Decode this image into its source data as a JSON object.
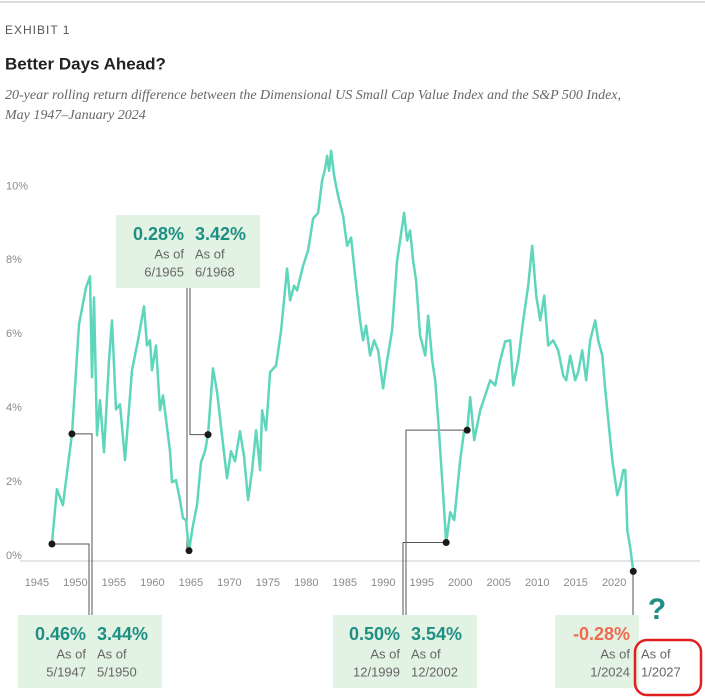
{
  "chart_data": {
    "type": "line",
    "kicker": "EXHIBIT 1",
    "title": "Better Days Ahead?",
    "subtitle": [
      "20-year rolling return difference between the Dimensional US Small Cap Value Index and the S&P 500 Index,",
      "May 1947–January 2024"
    ],
    "color": "#5ed6bb",
    "xlim": [
      1942.8,
      2031.8
    ],
    "ylim": [
      -1,
      11.2
    ],
    "xticks": [
      1945,
      1950,
      1955,
      1960,
      1965,
      1970,
      1975,
      1980,
      1985,
      1990,
      1995,
      2000,
      2005,
      2010,
      2015,
      2020
    ],
    "yticks": [
      {
        "value": 0,
        "label": "0%"
      },
      {
        "value": 2,
        "label": "2%"
      },
      {
        "value": 4,
        "label": "4%"
      },
      {
        "value": 6,
        "label": "6%"
      },
      {
        "value": 8,
        "label": "8%"
      },
      {
        "value": 10,
        "label": "10%"
      }
    ],
    "grid": false,
    "x": [
      1946.95,
      1947.6,
      1948.38,
      1949.55,
      1950.46,
      1951.37,
      1951.89,
      1952.15,
      1952.41,
      1952.8,
      1953.19,
      1953.71,
      1954.36,
      1954.75,
      1955.27,
      1955.79,
      1956.44,
      1957.35,
      1958.13,
      1958.91,
      1959.3,
      1959.69,
      1959.95,
      1960.47,
      1960.99,
      1961.38,
      1962.29,
      1962.55,
      1963.07,
      1963.59,
      1963.98,
      1964.37,
      1964.76,
      1965.28,
      1965.8,
      1966.32,
      1966.84,
      1967.23,
      1967.88,
      1968.4,
      1969.05,
      1969.7,
      1970.22,
      1970.74,
      1971.39,
      1971.91,
      1972.43,
      1972.95,
      1973.47,
      1973.99,
      1974.25,
      1974.77,
      1975.29,
      1976.07,
      1976.72,
      1977.5,
      1977.89,
      1978.41,
      1978.8,
      1979.58,
      1980.23,
      1980.88,
      1981.53,
      1982.05,
      1982.44,
      1982.7,
      1982.96,
      1983.22,
      1983.61,
      1984.13,
      1984.78,
      1985.3,
      1985.82,
      1986.34,
      1986.99,
      1987.38,
      1987.77,
      1988.29,
      1988.81,
      1989.33,
      1989.98,
      1990.5,
      1991.15,
      1991.8,
      1992.19,
      1992.71,
      1993.1,
      1993.49,
      1993.88,
      1994.27,
      1994.79,
      1995.44,
      1995.83,
      1996.35,
      1996.74,
      1997.13,
      1997.65,
      1998.17,
      1998.69,
      1999.21,
      1999.6,
      1999.99,
      2000.51,
      2000.9,
      2001.29,
      2001.81,
      2002.59,
      2003.24,
      2003.89,
      2004.54,
      2005.19,
      2005.84,
      2006.49,
      2006.88,
      2007.53,
      2008.18,
      2008.83,
      2009.35,
      2009.87,
      2010.39,
      2010.91,
      2011.43,
      2012.08,
      2012.73,
      2013.38,
      2013.77,
      2014.29,
      2014.94,
      2015.33,
      2015.85,
      2016.37,
      2016.89,
      2017.54,
      2017.93,
      2018.45,
      2018.84,
      2019.23,
      2019.75,
      2020.4,
      2020.79,
      2021.18,
      2021.44,
      2021.7,
      2022.09,
      2022.48
    ],
    "values": [
      0.46,
      1.94,
      1.51,
      3.44,
      6.4,
      7.4,
      7.7,
      4.97,
      7.13,
      3.4,
      4.35,
      2.94,
      5.43,
      6.51,
      4.1,
      4.24,
      2.73,
      5.16,
      5.97,
      6.89,
      5.83,
      5.97,
      5.16,
      5.83,
      4.08,
      4.48,
      2.97,
      2.13,
      2.19,
      1.65,
      1.16,
      1.11,
      0.28,
      0.97,
      1.51,
      2.67,
      2.97,
      3.42,
      5.21,
      4.59,
      3.4,
      2.24,
      2.97,
      2.7,
      3.51,
      2.84,
      1.65,
      2.46,
      3.54,
      2.46,
      4.08,
      3.54,
      5.11,
      5.29,
      6.24,
      7.91,
      7.05,
      7.45,
      7.32,
      7.99,
      8.4,
      9.26,
      9.42,
      10.29,
      10.61,
      10.96,
      10.56,
      11.1,
      10.42,
      9.88,
      9.34,
      8.53,
      8.75,
      7.72,
      6.51,
      5.97,
      6.37,
      5.56,
      5.97,
      5.7,
      4.67,
      5.43,
      6.24,
      8.13,
      8.67,
      9.42,
      8.67,
      8.94,
      8.13,
      7.59,
      6.1,
      5.56,
      6.64,
      5.43,
      4.89,
      3.81,
      2.19,
      0.5,
      1.32,
      1.11,
      1.92,
      2.73,
      3.54,
      3.54,
      4.43,
      3.27,
      4.08,
      4.48,
      4.89,
      4.75,
      5.43,
      5.94,
      5.97,
      4.75,
      5.43,
      6.51,
      7.45,
      8.53,
      7.18,
      6.51,
      7.18,
      5.83,
      5.97,
      5.7,
      5.02,
      4.89,
      5.56,
      4.89,
      5.11,
      5.7,
      4.89,
      5.97,
      6.51,
      5.97,
      5.56,
      4.62,
      3.81,
      2.73,
      1.78,
      2.05,
      2.46,
      2.46,
      0.84,
      0.35,
      -0.28
    ],
    "annotations": [
      {
        "items": [
          {
            "value": 0.46,
            "label": "0.46%",
            "as_of": "As of",
            "date": "5/1947",
            "x": 1946.95
          },
          {
            "value": 3.44,
            "label": "3.44%",
            "as_of": "As of",
            "date": "5/1950",
            "x": 1949.55
          }
        ]
      },
      {
        "items": [
          {
            "value": 0.28,
            "label": "0.28%",
            "as_of": "As of",
            "date": "6/1965",
            "x": 1964.76
          },
          {
            "value": 3.42,
            "label": "3.42%",
            "as_of": "As of",
            "date": "6/1968",
            "x": 1967.23
          }
        ]
      },
      {
        "items": [
          {
            "value": 0.5,
            "label": "0.50%",
            "as_of": "As of",
            "date": "12/1999",
            "x": 1998.17
          },
          {
            "value": 3.54,
            "label": "3.54%",
            "as_of": "As of",
            "date": "12/2002",
            "x": 2000.9
          }
        ]
      },
      {
        "items": [
          {
            "value": -0.28,
            "label": "-0.28%",
            "as_of": "As of",
            "date": "1/2024",
            "x": 2022.48
          },
          {
            "as_of": "As of",
            "date": "1/2027"
          }
        ],
        "question": "?"
      }
    ]
  }
}
